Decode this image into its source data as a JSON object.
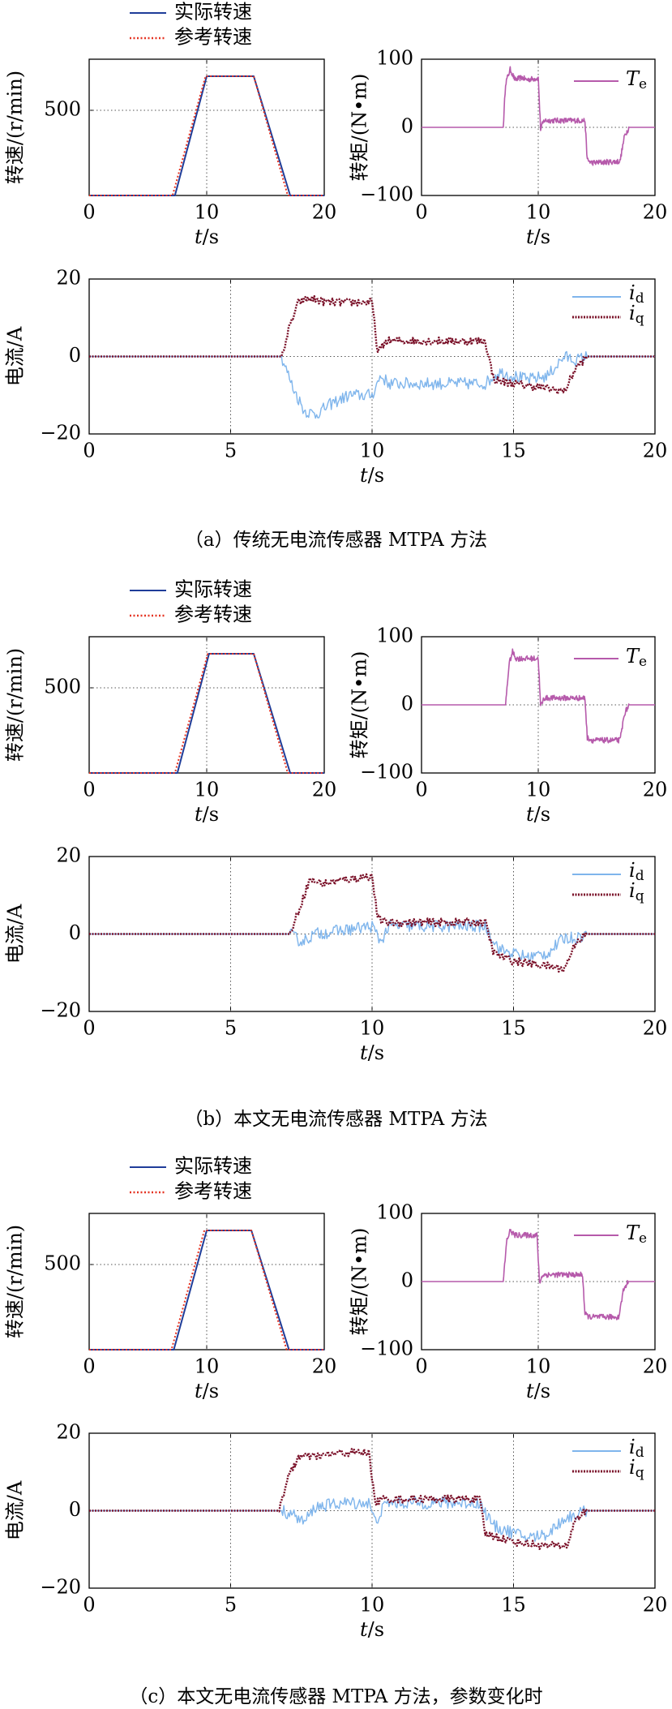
{
  "colors": {
    "actual_speed": "#1f3d99",
    "reference_speed": "#e53322",
    "torque": "#b65aab",
    "id": "#7fb5ec",
    "iq": "#7a1028",
    "grid": "#555555"
  },
  "legend": {
    "actual": "实际转速",
    "reference": "参考转速"
  },
  "panels": [
    {
      "caption": "（a）传统无电流传感器 MTPA 方法"
    },
    {
      "caption": "（b）本文无电流传感器 MTPA 方法"
    },
    {
      "caption": "（c）本文无电流传感器 MTPA 方法，参数变化时"
    }
  ],
  "chart_data": [
    {
      "panel": "a",
      "plot": "speed",
      "type": "line",
      "ylabel": "转速/(r/min)",
      "xlabel": "t/s",
      "xlim": [
        0,
        20
      ],
      "ylim": [
        0,
        800
      ],
      "xticks": [
        "0",
        "10",
        "20"
      ],
      "yticks": [
        "500"
      ],
      "grid": "dotted at y=500 and x=10",
      "series": [
        {
          "name": "实际转速",
          "x": [
            0,
            7.3,
            10,
            14,
            17.1,
            20
          ],
          "y": [
            0,
            0,
            700,
            700,
            0,
            0
          ]
        },
        {
          "name": "参考转速",
          "x": [
            0,
            7.1,
            9.9,
            14,
            16.9,
            20
          ],
          "y": [
            0,
            0,
            700,
            700,
            0,
            0
          ]
        }
      ]
    },
    {
      "panel": "a",
      "plot": "torque",
      "type": "line",
      "ylabel": "转矩/(N•m)",
      "xlabel": "t/s",
      "xlim": [
        0,
        20
      ],
      "ylim": [
        -100,
        100
      ],
      "xticks": [
        "0",
        "10",
        "20"
      ],
      "yticks": [
        "100",
        "0",
        "−100"
      ],
      "legend_position": "top-right",
      "series": [
        {
          "name": "T_e",
          "x": [
            0,
            7,
            7.2,
            7.6,
            8,
            8.6,
            9,
            10,
            10.2,
            10.5,
            14,
            14.2,
            14.6,
            17,
            17.4,
            17.8,
            20
          ],
          "y": [
            0,
            0,
            65,
            85,
            70,
            73,
            70,
            72,
            -2,
            10,
            10,
            -48,
            -52,
            -50,
            -12,
            0,
            0
          ]
        }
      ]
    },
    {
      "panel": "a",
      "plot": "current",
      "type": "line",
      "ylabel": "电流/A",
      "xlabel": "t/s",
      "xlim": [
        0,
        20
      ],
      "ylim": [
        -20,
        20
      ],
      "xticks": [
        "0",
        "5",
        "10",
        "15",
        "20"
      ],
      "yticks": [
        "20",
        "0",
        "−20"
      ],
      "legend_position": "top-right",
      "series": [
        {
          "name": "i_d",
          "x": [
            0,
            6.8,
            7.2,
            7.6,
            8,
            8.6,
            9.2,
            10,
            10.3,
            10.6,
            14,
            14.5,
            15.5,
            16.2,
            16.8,
            17.2,
            17.6,
            20
          ],
          "y": [
            0,
            0,
            -8,
            -14,
            -15,
            -12,
            -10,
            -10,
            -5,
            -7,
            -7,
            -4,
            -6,
            -5,
            0,
            -1,
            0,
            0
          ]
        },
        {
          "name": "i_q",
          "x": [
            0,
            6.8,
            7.1,
            7.4,
            7.8,
            8.4,
            9.2,
            10,
            10.2,
            10.5,
            14,
            14.3,
            15,
            16,
            16.8,
            17.2,
            17.6,
            20
          ],
          "y": [
            0,
            0,
            8,
            14,
            15,
            14,
            14,
            14,
            1,
            4,
            4,
            -6,
            -7,
            -8,
            -9,
            -3,
            0,
            0
          ]
        }
      ]
    },
    {
      "panel": "b",
      "plot": "speed",
      "type": "line",
      "ylabel": "转速/(r/min)",
      "xlabel": "t/s",
      "xlim": [
        0,
        20
      ],
      "ylim": [
        0,
        800
      ],
      "xticks": [
        "0",
        "10",
        "20"
      ],
      "yticks": [
        "500"
      ],
      "series": [
        {
          "name": "实际转速",
          "x": [
            0,
            7.5,
            10.2,
            14,
            17.1,
            20
          ],
          "y": [
            0,
            0,
            700,
            700,
            0,
            0
          ]
        },
        {
          "name": "参考转速",
          "x": [
            0,
            7.3,
            10.1,
            14,
            16.9,
            20
          ],
          "y": [
            0,
            0,
            700,
            700,
            0,
            0
          ]
        }
      ]
    },
    {
      "panel": "b",
      "plot": "torque",
      "type": "line",
      "ylabel": "转矩/(N•m)",
      "xlabel": "t/s",
      "xlim": [
        0,
        20
      ],
      "ylim": [
        -100,
        100
      ],
      "xticks": [
        "0",
        "10",
        "20"
      ],
      "yticks": [
        "100",
        "0",
        "−100"
      ],
      "legend_position": "top-right",
      "series": [
        {
          "name": "T_e",
          "x": [
            0,
            7.2,
            7.5,
            7.8,
            8.1,
            10,
            10.2,
            10.5,
            14,
            14.2,
            14.6,
            17,
            17.4,
            17.8,
            20
          ],
          "y": [
            0,
            0,
            60,
            78,
            68,
            68,
            -2,
            10,
            10,
            -48,
            -52,
            -52,
            -12,
            0,
            0
          ]
        }
      ]
    },
    {
      "panel": "b",
      "plot": "current",
      "type": "line",
      "ylabel": "电流/A",
      "xlabel": "t/s",
      "xlim": [
        0,
        20
      ],
      "ylim": [
        -20,
        20
      ],
      "xticks": [
        "0",
        "5",
        "10",
        "15",
        "20"
      ],
      "yticks": [
        "20",
        "0",
        "−20"
      ],
      "legend_position": "top-right",
      "series": [
        {
          "name": "i_d",
          "x": [
            0,
            7.1,
            7.5,
            8,
            9,
            10,
            10.3,
            10.6,
            14,
            14.5,
            15.5,
            16.2,
            16.8,
            17.2,
            17.6,
            20
          ],
          "y": [
            0,
            0,
            -2,
            0,
            1,
            2,
            -2,
            2,
            2,
            -4,
            -6,
            -5,
            -1,
            -1,
            0,
            0
          ]
        },
        {
          "name": "i_q",
          "x": [
            0,
            7.1,
            7.4,
            7.8,
            8.3,
            9,
            10,
            10.2,
            10.5,
            14,
            14.3,
            15,
            16,
            16.8,
            17.2,
            17.6,
            20
          ],
          "y": [
            0,
            0,
            6,
            14,
            13,
            14,
            15,
            4,
            3,
            3,
            -5,
            -7,
            -8,
            -9,
            -2,
            0,
            0
          ]
        }
      ]
    },
    {
      "panel": "c",
      "plot": "speed",
      "type": "line",
      "ylabel": "转速/(r/min)",
      "xlabel": "t/s",
      "xlim": [
        0,
        20
      ],
      "ylim": [
        0,
        800
      ],
      "xticks": [
        "0",
        "10",
        "20"
      ],
      "yticks": [
        "500"
      ],
      "series": [
        {
          "name": "实际转速",
          "x": [
            0,
            7.2,
            10,
            13.8,
            17,
            20
          ],
          "y": [
            0,
            0,
            700,
            700,
            0,
            0
          ]
        },
        {
          "name": "参考转速",
          "x": [
            0,
            7.0,
            9.8,
            13.8,
            16.8,
            20
          ],
          "y": [
            0,
            0,
            700,
            700,
            0,
            0
          ]
        }
      ]
    },
    {
      "panel": "c",
      "plot": "torque",
      "type": "line",
      "ylabel": "转矩/(N•m)",
      "xlabel": "t/s",
      "xlim": [
        0,
        20
      ],
      "ylim": [
        -100,
        100
      ],
      "xticks": [
        "0",
        "10",
        "20"
      ],
      "yticks": [
        "100",
        "0",
        "−100"
      ],
      "legend_position": "top-right",
      "series": [
        {
          "name": "T_e",
          "x": [
            0,
            7,
            7.3,
            7.6,
            8,
            9.9,
            10.1,
            10.4,
            13.8,
            14,
            14.4,
            16.9,
            17.3,
            17.7,
            20
          ],
          "y": [
            0,
            0,
            60,
            75,
            68,
            68,
            -2,
            10,
            10,
            -48,
            -52,
            -52,
            -12,
            0,
            0
          ]
        }
      ]
    },
    {
      "panel": "c",
      "plot": "current",
      "type": "line",
      "ylabel": "电流/A",
      "xlabel": "t/s",
      "xlim": [
        0,
        20
      ],
      "ylim": [
        -20,
        20
      ],
      "xticks": [
        "0",
        "5",
        "10",
        "15",
        "20"
      ],
      "yticks": [
        "20",
        "0",
        "−20"
      ],
      "legend_position": "top-right",
      "series": [
        {
          "name": "i_d",
          "x": [
            0,
            6.8,
            7.2,
            7.6,
            8,
            9,
            9.9,
            10.1,
            10.5,
            13.8,
            14.3,
            15.5,
            16.2,
            16.8,
            17.2,
            17.6,
            20
          ],
          "y": [
            0,
            0,
            -1,
            -3,
            1,
            2,
            2,
            -3,
            2,
            2,
            -4,
            -7,
            -6,
            -2,
            -1,
            0,
            0
          ]
        },
        {
          "name": "i_q",
          "x": [
            0,
            6.7,
            7,
            7.4,
            8,
            9,
            9.9,
            10.1,
            10.4,
            13.8,
            14,
            15,
            16,
            16.9,
            17.2,
            17.6,
            20
          ],
          "y": [
            0,
            0,
            8,
            14,
            14,
            15,
            15,
            2,
            3,
            3,
            -6,
            -8,
            -9,
            -9,
            -2,
            0,
            0
          ]
        }
      ]
    }
  ]
}
